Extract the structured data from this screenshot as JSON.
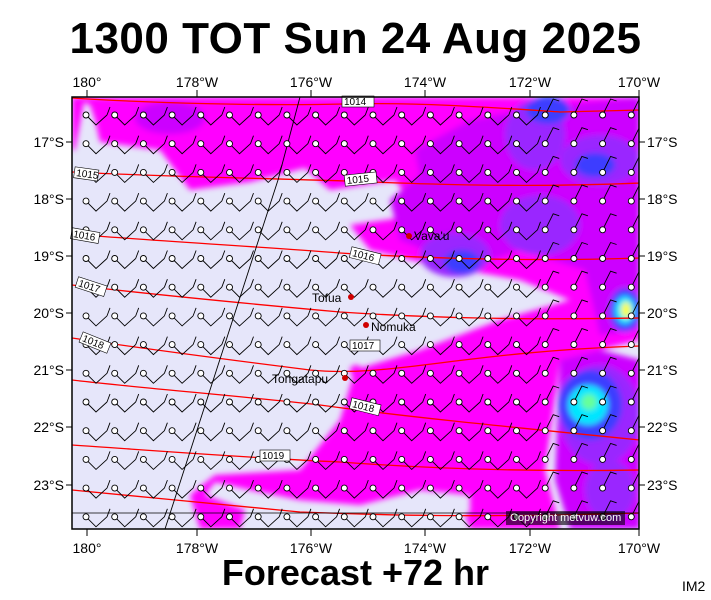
{
  "title": "1300 TOT Sun 24 Aug 2025",
  "footer": "Forecast +72 hr",
  "image_code": "IM2",
  "copyright": "Copyright metvuw.com",
  "axes": {
    "lon_labels": [
      "180°",
      "178°W",
      "176°W",
      "174°W",
      "172°W",
      "170°W"
    ],
    "lat_labels": [
      "17°S",
      "18°S",
      "19°S",
      "20°S",
      "21°S",
      "22°S",
      "23°S"
    ]
  },
  "places": [
    {
      "name": "Vava'u"
    },
    {
      "name": "Tofua"
    },
    {
      "name": "Nomuka"
    },
    {
      "name": "Tongatapu"
    }
  ],
  "isobars": [
    "1014",
    "1015",
    "1015",
    "1016",
    "1016",
    "1017",
    "1017",
    "1018",
    "1018",
    "1019"
  ],
  "colors": {
    "land_bg": "#e6e6fa",
    "magenta": "#ff00ff",
    "purple": "#cc00ff",
    "violet": "#9a28ff",
    "blue": "#3c3cff",
    "cyan": "#00e6ff",
    "isobar": "#ff0000"
  }
}
